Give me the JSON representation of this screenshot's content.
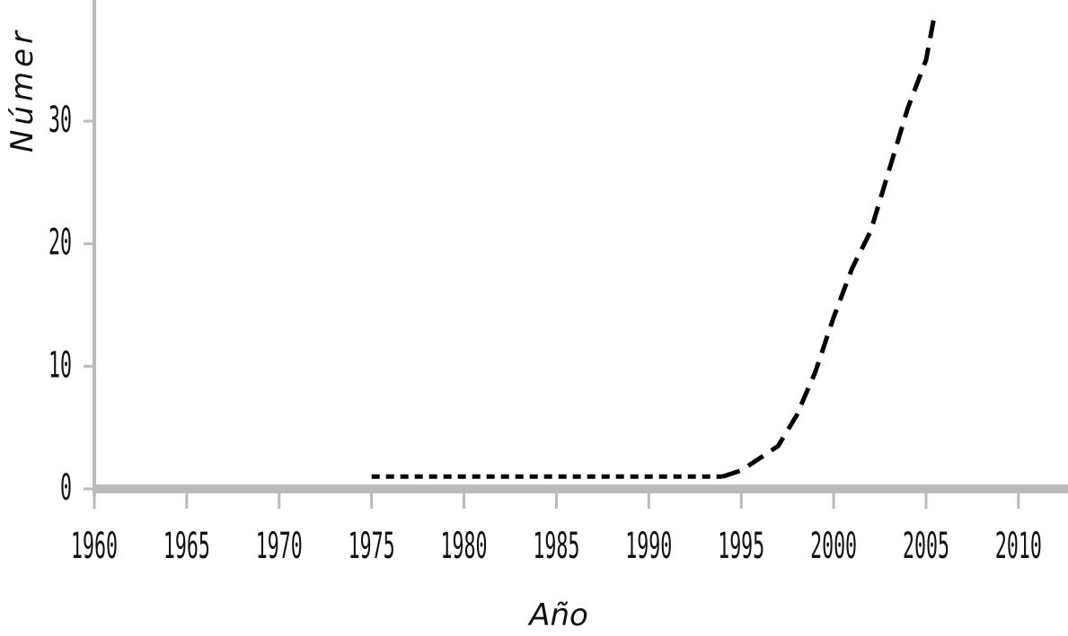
{
  "chart_data": {
    "type": "line",
    "title": "",
    "xlabel": "Año",
    "ylabel": "Númer",
    "xlim": [
      1960,
      2012
    ],
    "ylim": [
      0,
      39
    ],
    "x_ticks": [
      1960,
      1965,
      1970,
      1975,
      1980,
      1985,
      1990,
      1995,
      2000,
      2005,
      2010
    ],
    "y_ticks": [
      0,
      10,
      20,
      30
    ],
    "grid": false,
    "legend": "none",
    "series": [
      {
        "line_style": "dotted",
        "color": "#000000",
        "points": [
          [
            1975,
            1
          ],
          [
            1980,
            1
          ],
          [
            1985,
            1
          ],
          [
            1990,
            1
          ],
          [
            1994,
            1
          ]
        ]
      },
      {
        "line_style": "dashed",
        "color": "#000000",
        "points": [
          [
            1994,
            1
          ],
          [
            1995,
            1.5
          ],
          [
            1997,
            3.5
          ],
          [
            1998,
            6
          ],
          [
            1999,
            9.5
          ],
          [
            2000,
            14
          ],
          [
            2001,
            18
          ],
          [
            2002,
            21
          ],
          [
            2003,
            26
          ],
          [
            2004,
            31
          ],
          [
            2005,
            35
          ],
          [
            2005.5,
            39
          ]
        ]
      }
    ],
    "axis_color": "#bbbbbb"
  }
}
